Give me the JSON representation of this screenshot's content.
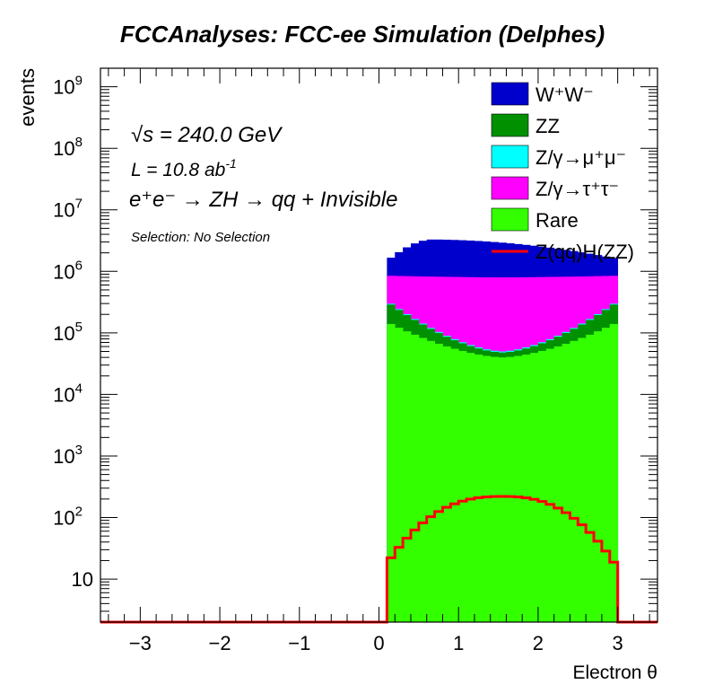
{
  "chart_data": {
    "type": "histogram-stacked",
    "title": "FCCAnalyses: FCC-ee Simulation (Delphes)",
    "xlabel": "Electron θ",
    "ylabel": "events",
    "xlim": [
      -3.5,
      3.5
    ],
    "ylim": [
      2,
      2000000000
    ],
    "ylog": true,
    "xticks": [
      -3,
      -2,
      -1,
      0,
      1,
      2,
      3
    ],
    "xtick_labels": [
      "−3",
      "−2",
      "−1",
      "0",
      "1",
      "2",
      "3"
    ],
    "yticks": [
      10,
      100,
      1000,
      10000,
      100000,
      1000000,
      10000000,
      100000000,
      1000000000
    ],
    "ytick_labels": [
      {
        "base": "10",
        "exp": ""
      },
      {
        "base": "10",
        "exp": "2"
      },
      {
        "base": "10",
        "exp": "3"
      },
      {
        "base": "10",
        "exp": "4"
      },
      {
        "base": "10",
        "exp": "5"
      },
      {
        "base": "10",
        "exp": "6"
      },
      {
        "base": "10",
        "exp": "7"
      },
      {
        "base": "10",
        "exp": "8"
      },
      {
        "base": "10",
        "exp": "9"
      }
    ],
    "annotations": {
      "sqrt_s": {
        "root": "√s",
        "rest": " = 240.0 GeV"
      },
      "lumi": {
        "pre": "L = 10.8 ab",
        "exp": "-1"
      },
      "process": "e⁺e⁻ → ZH → qq + Invisible",
      "selection": "Selection: No Selection"
    },
    "bin_range": [
      0.1,
      3.0
    ],
    "bin_count": 29,
    "stack_cumulative_tops": [
      {
        "name": "Rare",
        "color": "#33ff00",
        "at_ends": 150000,
        "at_center": 40000
      },
      {
        "name": "ZZ",
        "color": "#009000",
        "at_ends": 320000,
        "at_center": 48000
      },
      {
        "name": "Z/γ→μ⁺μ⁻",
        "color": "#00ffff",
        "at_ends": 330000,
        "at_center": 50000
      },
      {
        "name": "Z/γ→τ⁺τ⁻",
        "color": "#ff00ff",
        "at_ends": 850000,
        "at_center": 800000
      },
      {
        "name": "W⁺W⁻",
        "color": "#0000cc",
        "at_low": 1500000,
        "peak": 3300000,
        "at_high": 1600000
      }
    ],
    "signal": {
      "name": "Z(qq)H(ZZ)",
      "color": "#ff0000",
      "first_bin": 18,
      "peak": 220,
      "last_bin": 15
    },
    "legend": {
      "placement": "top-right",
      "entries": [
        {
          "label": "W⁺W⁻",
          "color": "#0000cc",
          "kind": "fill"
        },
        {
          "label": "ZZ",
          "color": "#009000",
          "kind": "fill"
        },
        {
          "label": "Z/γ→μ⁺μ⁻",
          "color": "#00ffff",
          "kind": "fill"
        },
        {
          "label": "Z/γ→τ⁺τ⁻",
          "color": "#ff00ff",
          "kind": "fill"
        },
        {
          "label": "Rare",
          "color": "#33ff00",
          "kind": "fill"
        },
        {
          "label": "Z(qq)H(ZZ)",
          "color": "#ff0000",
          "kind": "line"
        }
      ]
    },
    "grid": false
  }
}
